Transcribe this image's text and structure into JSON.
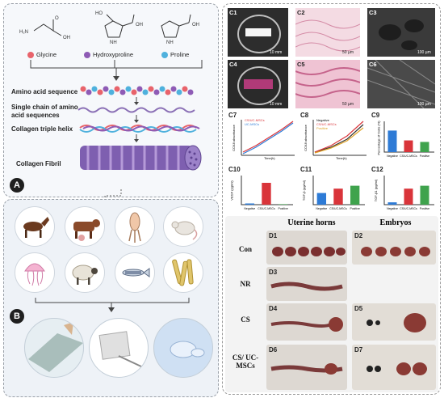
{
  "panel_a": {
    "letter": "A",
    "amino_acids": [
      "Glycine",
      "Hydroxyproline",
      "Proline"
    ],
    "legend_colors": [
      "#e8636b",
      "#8e5bb5",
      "#4fb1dd"
    ],
    "mol_atoms": {
      "h2n": "H₂N",
      "oh": "OH",
      "ho": "HO",
      "nh": "NH",
      "o": "O"
    },
    "steps": [
      "Amino acid sequence",
      "Single chain of amino acid sequences",
      "Collagen triple helix",
      "Collagen Fibril"
    ]
  },
  "panel_b": {
    "letter": "B",
    "sources": [
      "horse-icon",
      "cattle-icon",
      "squid-icon",
      "rat-icon",
      "jellyfish-icon",
      "sheep-icon",
      "zebrafish-icon",
      "tendon-icon"
    ]
  },
  "panel_c": {
    "tiles": [
      {
        "label": "C1",
        "scale": "10 mm"
      },
      {
        "label": "C2",
        "scale": "50 µm"
      },
      {
        "label": "C3",
        "scale": "100 µm"
      },
      {
        "label": "C4",
        "scale": "10 mm"
      },
      {
        "label": "C5",
        "scale": "50 µm"
      },
      {
        "label": "C6",
        "scale": "100 µm"
      }
    ],
    "charts": {
      "c7": {
        "label": "C7",
        "ylabel": "CCK8 absorbance",
        "xlabel": "Time(h)",
        "legend": [
          "CS/UC-MSCs",
          "UC-MSCs"
        ]
      },
      "c8": {
        "label": "C8",
        "ylabel": "CCK8 absorbance",
        "xlabel": "Time(h)",
        "legend": [
          "Negative",
          "CS/UC-MSCs",
          "Positive"
        ]
      },
      "c9": {
        "label": "C9",
        "ylabel": "Percentage of Cells (%)",
        "categories": [
          "Negative",
          "CS/UC-MSCs",
          "Positive"
        ],
        "values": [
          70,
          38,
          33
        ],
        "ylim": [
          0,
          100
        ]
      },
      "c10": {
        "label": "C10",
        "ylabel": "VEGF (pg/ml)",
        "categories": [
          "Negative",
          "CS/UC-MSCs",
          "Positive"
        ],
        "values": [
          5,
          90,
          2
        ],
        "ylim": [
          0,
          120
        ]
      },
      "c11": {
        "label": "C11",
        "ylabel": "TGF-β (pg/ml)",
        "categories": [
          "Negative",
          "CS/UC-MSCs",
          "Positive"
        ],
        "values": [
          40,
          55,
          65
        ],
        "ylim": [
          0,
          100
        ]
      },
      "c12": {
        "label": "C12",
        "ylabel": "TGF-β1 (pg/ml)",
        "categories": [
          "Negative",
          "CS/UC-MSCs",
          "Positive"
        ],
        "values": [
          8,
          55,
          65
        ],
        "ylim": [
          0,
          100
        ]
      }
    }
  },
  "panel_d": {
    "col_headers": [
      "Uterine horns",
      "Embryos"
    ],
    "rows": [
      "Con",
      "NR",
      "CS",
      "CS/ UC-MSCs"
    ],
    "labels": [
      "D1",
      "D2",
      "D3",
      "D4",
      "D5",
      "D6",
      "D7"
    ]
  }
}
